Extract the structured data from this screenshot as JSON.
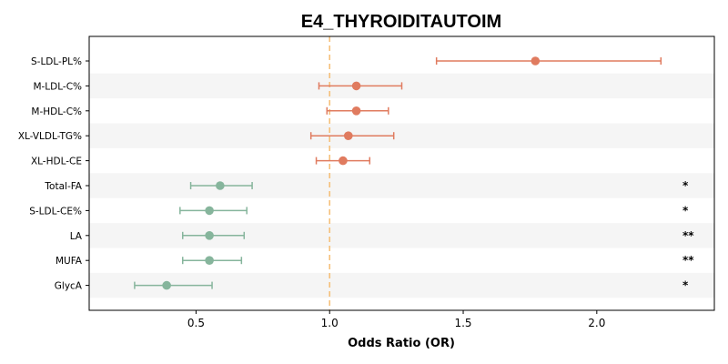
{
  "chart_data": {
    "type": "forest",
    "title": "E4_THYROIDITAUTOIM",
    "xlabel": "Odds Ratio (OR)",
    "xlim": [
      0.1,
      2.44
    ],
    "xticks": [
      0.5,
      1.0,
      1.5,
      2.0
    ],
    "xtick_labels": [
      "0.5",
      "1.0",
      "1.5",
      "2.0"
    ],
    "reference_line": 1.0,
    "reference_color": "#f5c07a",
    "grid": false,
    "row_band_color": "#f5f5f5",
    "colors": {
      "risk": "#e07b5f",
      "protective": "#86b59c"
    },
    "rows": [
      {
        "label": "S-LDL-PL%",
        "or": 1.77,
        "lo": 1.4,
        "hi": 2.24,
        "group": "risk",
        "sig": ""
      },
      {
        "label": "M-LDL-C%",
        "or": 1.1,
        "lo": 0.96,
        "hi": 1.27,
        "group": "risk",
        "sig": ""
      },
      {
        "label": "M-HDL-C%",
        "or": 1.1,
        "lo": 0.99,
        "hi": 1.22,
        "group": "risk",
        "sig": ""
      },
      {
        "label": "XL-VLDL-TG%",
        "or": 1.07,
        "lo": 0.93,
        "hi": 1.24,
        "group": "risk",
        "sig": ""
      },
      {
        "label": "XL-HDL-CE",
        "or": 1.05,
        "lo": 0.95,
        "hi": 1.15,
        "group": "risk",
        "sig": ""
      },
      {
        "label": "Total-FA",
        "or": 0.59,
        "lo": 0.48,
        "hi": 0.71,
        "group": "protective",
        "sig": "*"
      },
      {
        "label": "S-LDL-CE%",
        "or": 0.55,
        "lo": 0.44,
        "hi": 0.69,
        "group": "protective",
        "sig": "*"
      },
      {
        "label": "LA",
        "or": 0.55,
        "lo": 0.45,
        "hi": 0.68,
        "group": "protective",
        "sig": "**"
      },
      {
        "label": "MUFA",
        "or": 0.55,
        "lo": 0.45,
        "hi": 0.67,
        "group": "protective",
        "sig": "**"
      },
      {
        "label": "GlycA",
        "or": 0.39,
        "lo": 0.27,
        "hi": 0.56,
        "group": "protective",
        "sig": "*"
      }
    ]
  }
}
